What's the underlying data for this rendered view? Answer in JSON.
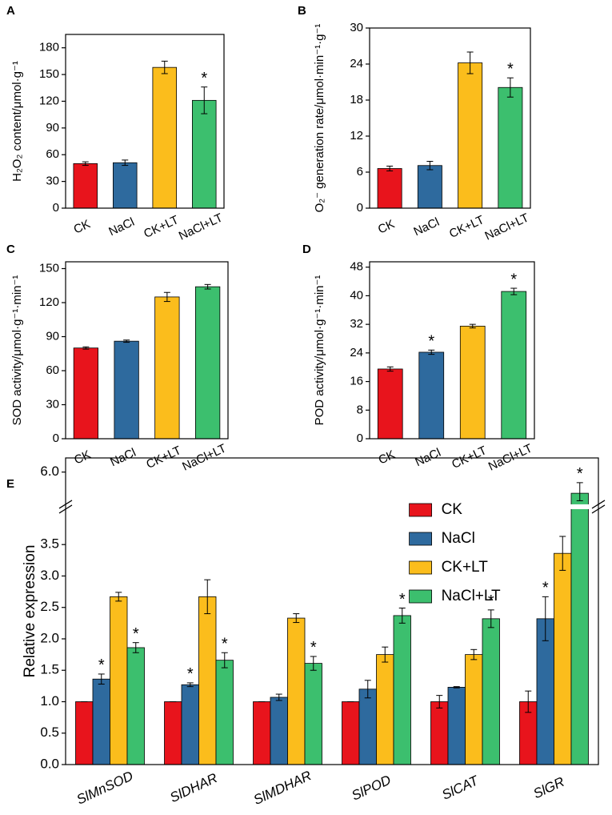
{
  "chart_data": [
    {
      "type": "bar",
      "panel": "A",
      "ylabel": "H₂O₂ content/μmol·g⁻¹",
      "categories": [
        "CK",
        "NaCl",
        "CK+LT",
        "NaCl+LT"
      ],
      "values": [
        50,
        51,
        158,
        121
      ],
      "errors": [
        2,
        3,
        7,
        15
      ],
      "colors": [
        "#e8141c",
        "#2e6a9e",
        "#fbbd1c",
        "#3cbf6e"
      ],
      "significance": [
        null,
        null,
        null,
        "*"
      ],
      "ylim": [
        0,
        195
      ],
      "yticks": [
        0,
        30,
        60,
        90,
        120,
        150,
        180
      ]
    },
    {
      "type": "bar",
      "panel": "B",
      "ylabel": "O₂⁻ generation rate/μmol·min⁻¹·g⁻¹",
      "categories": [
        "CK",
        "NaCl",
        "CK+LT",
        "NaCl+LT"
      ],
      "values": [
        6.6,
        7.1,
        24.2,
        20.1
      ],
      "errors": [
        0.4,
        0.7,
        1.8,
        1.6
      ],
      "colors": [
        "#e8141c",
        "#2e6a9e",
        "#fbbd1c",
        "#3cbf6e"
      ],
      "significance": [
        null,
        null,
        null,
        "*"
      ],
      "ylim": [
        0,
        30
      ],
      "yticks": [
        0,
        6,
        12,
        18,
        24,
        30
      ]
    },
    {
      "type": "bar",
      "panel": "C",
      "ylabel": "SOD activity/μmol·g⁻¹·min⁻¹",
      "categories": [
        "CK",
        "NaCl",
        "CK+LT",
        "NaCl+LT"
      ],
      "values": [
        80,
        86,
        125,
        134
      ],
      "errors": [
        1,
        1,
        4,
        2
      ],
      "colors": [
        "#e8141c",
        "#2e6a9e",
        "#fbbd1c",
        "#3cbf6e"
      ],
      "significance": [
        null,
        null,
        null,
        null
      ],
      "ylim": [
        0,
        156
      ],
      "yticks": [
        0,
        30,
        60,
        90,
        120,
        150
      ]
    },
    {
      "type": "bar",
      "panel": "D",
      "ylabel": "POD activity/μmol·g⁻¹·min⁻¹",
      "categories": [
        "CK",
        "NaCl",
        "CK+LT",
        "NaCl+LT"
      ],
      "values": [
        19.5,
        24.2,
        31.5,
        41.2
      ],
      "errors": [
        0.6,
        0.6,
        0.5,
        0.9
      ],
      "colors": [
        "#e8141c",
        "#2e6a9e",
        "#fbbd1c",
        "#3cbf6e"
      ],
      "significance": [
        null,
        "*",
        null,
        "*"
      ],
      "ylim": [
        0,
        49.5
      ],
      "yticks": [
        0,
        8,
        16,
        24,
        32,
        40,
        48
      ]
    },
    {
      "type": "grouped_bar",
      "panel": "E",
      "ylabel": "Relative expression",
      "categories": [
        "SlMnSOD",
        "SlDHAR",
        "SlMDHAR",
        "SlPOD",
        "SlCAT",
        "SlGR"
      ],
      "series": [
        {
          "name": "CK",
          "color": "#e8141c",
          "values": [
            1.0,
            1.0,
            1.0,
            1.0,
            1.0,
            1.0
          ],
          "errors": [
            0,
            0,
            0,
            0,
            0.1,
            0.17
          ],
          "significance": [
            null,
            null,
            null,
            null,
            null,
            null
          ]
        },
        {
          "name": "NaCl",
          "color": "#2e6a9e",
          "values": [
            1.36,
            1.27,
            1.07,
            1.2,
            1.23,
            2.32
          ],
          "errors": [
            0.08,
            0.03,
            0.05,
            0.14,
            0.01,
            0.35
          ],
          "significance": [
            "*",
            "*",
            null,
            null,
            null,
            "*"
          ]
        },
        {
          "name": "CK+LT",
          "color": "#fbbd1c",
          "values": [
            2.67,
            2.67,
            2.33,
            1.75,
            1.75,
            3.36
          ],
          "errors": [
            0.07,
            0.27,
            0.07,
            0.12,
            0.08,
            0.27
          ],
          "significance": [
            null,
            null,
            null,
            null,
            null,
            null
          ]
        },
        {
          "name": "NaCl+LT",
          "color": "#3cbf6e",
          "values": [
            1.86,
            1.66,
            1.61,
            2.37,
            2.32,
            5.7
          ],
          "errors": [
            0.08,
            0.12,
            0.11,
            0.12,
            0.14,
            0.15
          ],
          "significance": [
            "*",
            "*",
            "*",
            "*",
            "*",
            "*"
          ]
        }
      ],
      "ylim": [
        0,
        6.2
      ],
      "ybreak": [
        4.0,
        5.6
      ],
      "legend": "upper right",
      "yticks": [
        {
          "value": 0,
          "label": "0.0"
        },
        {
          "value": 0.5,
          "label": "0.5"
        },
        {
          "value": 1,
          "label": "1.0"
        },
        {
          "value": 1.5,
          "label": "1.5"
        },
        {
          "value": 2,
          "label": "2.0"
        },
        {
          "value": 2.5,
          "label": "2.5"
        },
        {
          "value": 3,
          "label": "3.0"
        },
        {
          "value": 3.5,
          "label": "3.5"
        },
        {
          "value": 6,
          "label": "6.0"
        }
      ]
    }
  ]
}
